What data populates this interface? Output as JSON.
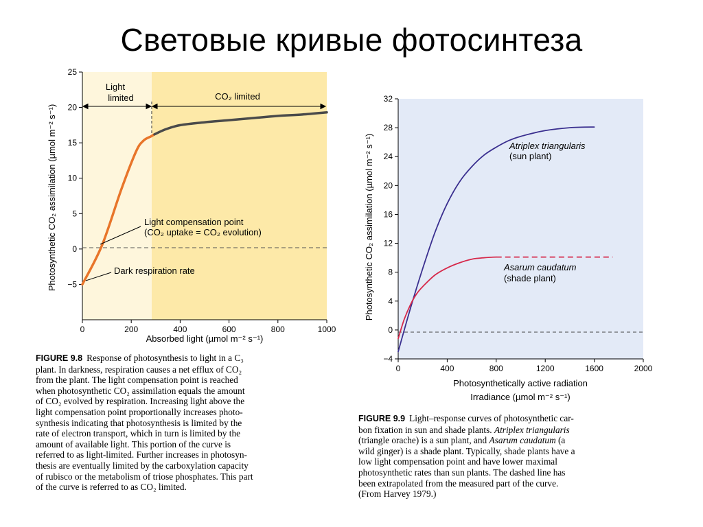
{
  "slide": {
    "title": "Световые кривые фотосинтеза"
  },
  "chart_data": [
    {
      "type": "line",
      "id": "figure-9-8",
      "title": "",
      "xlabel": "Absorbed light (µmol m⁻² s⁻¹)",
      "ylabel": "Photosynthetic CO₂ assimilation (µmol m⁻² s⁻¹)",
      "xlim": [
        0,
        1000
      ],
      "ylim": [
        -10,
        25
      ],
      "xticks": [
        0,
        200,
        400,
        600,
        800,
        1000
      ],
      "yticks": [
        -5,
        0,
        5,
        10,
        15,
        20,
        25
      ],
      "ytick_labels": [
        "−5",
        "0",
        "5",
        "10",
        "15",
        "20",
        "25"
      ],
      "regions": [
        {
          "name": "Light limited",
          "from": 0,
          "to": 295,
          "color": "#fef6dc"
        },
        {
          "name": "CO₂ limited",
          "from": 295,
          "to": 1000,
          "color": "#fde9a8"
        }
      ],
      "region_labels": {
        "light_line1": "Light",
        "light_line2": "limited",
        "co2": "CO₂ limited"
      },
      "series": [
        {
          "name": "Light-limited segment",
          "color": "#e8752a",
          "x": [
            0,
            80,
            160,
            220,
            250,
            280,
            295
          ],
          "y": [
            -5,
            0.5,
            8.5,
            13.8,
            15.3,
            15.9,
            16.2
          ]
        },
        {
          "name": "CO₂-limited segment",
          "color": "#4a4a4a",
          "x": [
            295,
            340,
            400,
            500,
            600,
            700,
            800,
            900,
            1000
          ],
          "y": [
            16.2,
            16.9,
            17.5,
            17.9,
            18.2,
            18.5,
            18.8,
            19.0,
            19.3
          ]
        }
      ],
      "reference_lines": [
        {
          "axis": "y",
          "value": 0,
          "style": "dashed"
        }
      ],
      "annotations": [
        {
          "id": "lcp",
          "lines": [
            "Light compensation point",
            "(CO₂ uptake = CO₂ evolution)"
          ]
        },
        {
          "id": "dark",
          "lines": [
            "Dark respiration rate"
          ]
        }
      ]
    },
    {
      "type": "line",
      "id": "figure-9-9",
      "title": "",
      "xlabel": "Photosynthetically active radiation",
      "xlabel2": "Irradiance (µmol m⁻² s⁻¹)",
      "ylabel": "Photosynthetic CO₂ assimilation (µmol m⁻² s⁻¹)",
      "xlim": [
        0,
        2000
      ],
      "ylim": [
        -4,
        32
      ],
      "xticks": [
        0,
        400,
        800,
        1200,
        1600,
        2000
      ],
      "yticks": [
        -4,
        0,
        4,
        8,
        12,
        16,
        20,
        24,
        28,
        32
      ],
      "ytick_labels": [
        "−4",
        "0",
        "4",
        "8",
        "12",
        "16",
        "20",
        "24",
        "28",
        "32"
      ],
      "background": "#e3eaf7",
      "series": [
        {
          "name": "Atriplex triangularis",
          "sublabel": "(sun plant)",
          "color": "#3a2f8f",
          "x": [
            0,
            100,
            200,
            300,
            400,
            500,
            600,
            700,
            800,
            900,
            1000,
            1200,
            1400,
            1600
          ],
          "y": [
            -3,
            3,
            8.5,
            13.5,
            17.5,
            20.5,
            22.6,
            24.2,
            25.3,
            26.2,
            26.8,
            27.6,
            28.0,
            28.1
          ]
        },
        {
          "name": "Asarum caudatum",
          "sublabel": "(shade plant)",
          "color": "#d6284a",
          "x": [
            0,
            50,
            100,
            150,
            200,
            300,
            400,
            500,
            600,
            700,
            800
          ],
          "y": [
            -1.2,
            1.5,
            3.5,
            5.0,
            6.0,
            7.6,
            8.6,
            9.3,
            9.8,
            10.0,
            10.1
          ]
        },
        {
          "name": "Asarum caudatum (extrapolated)",
          "color": "#d6284a",
          "style": "dashed",
          "x": [
            800,
            1750
          ],
          "y": [
            10.1,
            10.1
          ]
        }
      ],
      "reference_lines": [
        {
          "axis": "y",
          "value": 0,
          "style": "dashed"
        }
      ]
    }
  ],
  "captions": {
    "fig98": {
      "label": "FIGURE 9.8",
      "lines": [
        "Response of photosynthesis to light in a C₃",
        "plant. In darkness, respiration causes a net efflux of CO₂",
        "from the plant. The light compensation point is reached",
        "when photosynthetic CO₂ assimilation equals the amount",
        "of CO₂ evolved by respiration. Increasing light above the",
        "light compensation point proportionally increases photo-",
        "synthesis indicating that photosynthesis is limited by the",
        "rate of electron transport, which in turn is limited by the",
        "amount of available light. This portion of the curve is",
        "referred to as light-limited. Further increases in photosyn-",
        "thesis are eventually limited by the carboxylation capacity",
        "of rubisco or the metabolism of triose phosphates. This part",
        "of the curve is referred to as CO₂ limited."
      ]
    },
    "fig99": {
      "label": "FIGURE 9.9",
      "line1": "Light–response curves of photosynthetic car-",
      "line2_a": "bon fixation in sun and shade plants. ",
      "line2_b": "Atriplex triangularis",
      "line3_a": "(triangle orache) is a sun plant, and ",
      "line3_b": "Asarum caudatum",
      "line3_c": " (a",
      "line4": "wild ginger) is a shade plant. Typically, shade plants have a",
      "line5": "low light compensation point and have lower maximal",
      "line6": "photosynthetic rates than sun plants. The dashed line has",
      "line7": "been extrapolated from the measured part of the curve.",
      "line8": "(From Harvey 1979.)"
    }
  }
}
